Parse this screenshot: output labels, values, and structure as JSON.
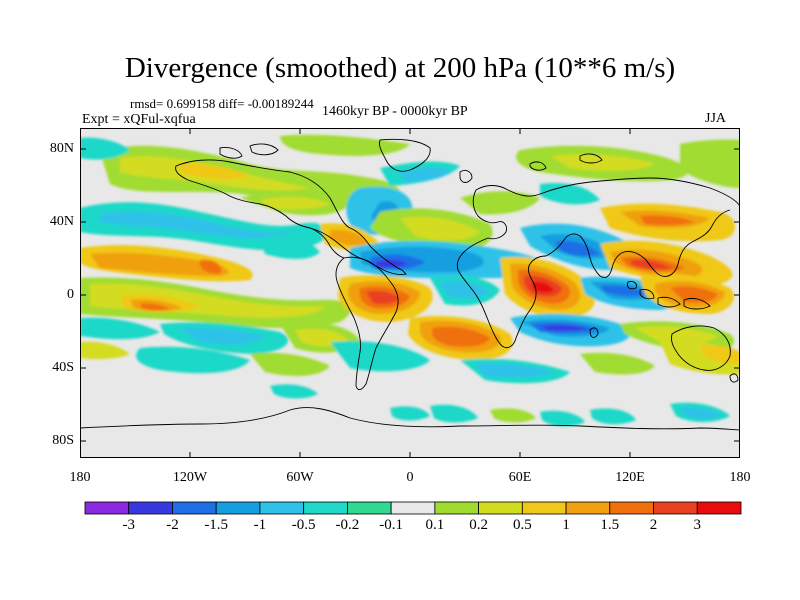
{
  "title": "Divergence (smoothed) at 200 hPa (10**6 m/s)",
  "stats": "rmsd= 0.699158 diff= -0.00189244",
  "expt": "Expt = xQFul-xqfua",
  "period": "1460kyr BP - 0000kyr BP",
  "season": "JJA",
  "y_axis": {
    "ticks": [
      "80N",
      "40N",
      "0",
      "40S",
      "80S"
    ]
  },
  "x_axis": {
    "ticks": [
      "180",
      "120W",
      "60W",
      "0",
      "60E",
      "120E",
      "180"
    ]
  },
  "colorbar": {
    "labels": [
      "-3",
      "-2",
      "-1.5",
      "-1",
      "-0.5",
      "-0.2",
      "-0.1",
      "0.1",
      "0.2",
      "0.5",
      "1",
      "1.5",
      "2",
      "3"
    ],
    "colors": [
      "#8a2be2",
      "#3838e0",
      "#1e6ee6",
      "#169fe0",
      "#2ec2e8",
      "#1fd8c8",
      "#30d890",
      "#e8e8e8",
      "#a0dc30",
      "#d4dc20",
      "#f0c818",
      "#f0a010",
      "#f07010",
      "#e84020",
      "#e80c0c"
    ]
  },
  "map": {
    "description_colors": {
      "neutral": "#e8e8e8",
      "coast": "#000000"
    }
  }
}
